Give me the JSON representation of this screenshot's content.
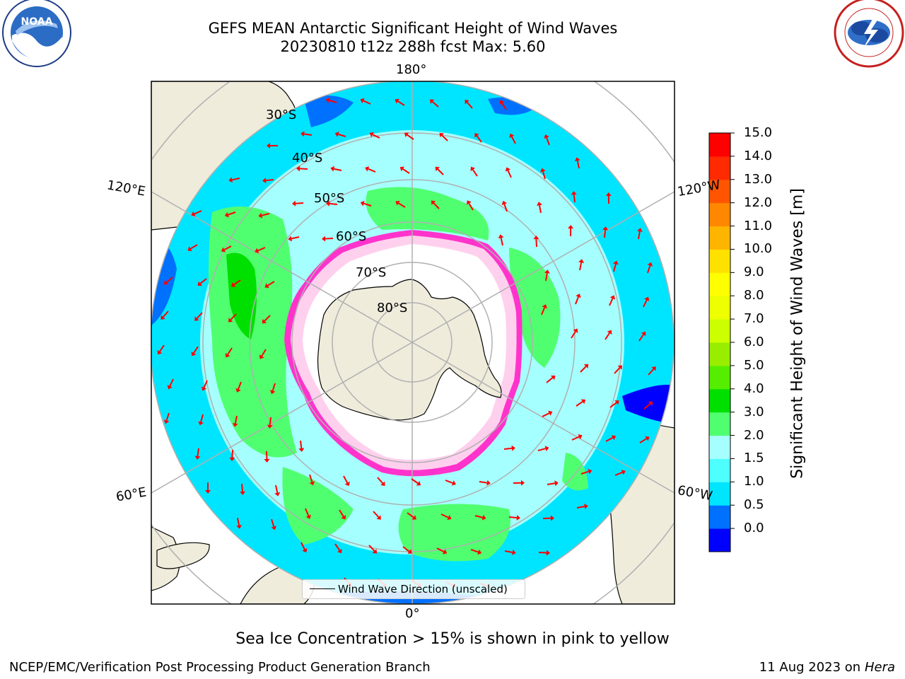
{
  "header": {
    "title_line1": "GEFS MEAN Antarctic Significant Height of Wind Waves",
    "title_line2": "20230810 t12z 288h fcst   Max: 5.60"
  },
  "logos": {
    "noaa": {
      "label": "NOAA",
      "ring_text": "NATIONAL OCEANIC AND ATMOSPHERIC ADMINISTRATION · U.S. DEPARTMENT OF COMMERCE"
    },
    "nws": {
      "ring_text": "NATIONAL WEATHER SERVICE"
    }
  },
  "map": {
    "projection": "south polar stereographic",
    "longitude_labels": {
      "top": "180°",
      "bottom": "0°",
      "upper_left": "120°E",
      "upper_right": "120°W",
      "lower_left": "60°E",
      "lower_right": "60°W"
    },
    "latitude_labels": [
      "30°S",
      "40°S",
      "50°S",
      "60°S",
      "70°S",
      "80°S"
    ],
    "legend_label": "Wind Wave Direction (unscaled)",
    "colors": {
      "land": "#efecdc",
      "ice_edge": "#ff33cc",
      "ice_core": "#ffd9f2",
      "grid": "#b0b0b0",
      "arrow": "#ff0000",
      "coast": "#000000"
    }
  },
  "colorbar": {
    "label": "Significant Height of Wind Waves [m]",
    "ticks": [
      "15.0",
      "14.0",
      "13.0",
      "12.0",
      "11.0",
      "10.0",
      "9.0",
      "8.0",
      "7.0",
      "6.0",
      "5.0",
      "4.0",
      "3.0",
      "2.0",
      "1.5",
      "1.0",
      "0.5",
      "0.0"
    ],
    "colors_bottom_to_top": [
      "#0000ff",
      "#0070ff",
      "#00e5ff",
      "#4dffff",
      "#a6ffff",
      "#50ff70",
      "#00e000",
      "#55ee00",
      "#99ee00",
      "#ccff00",
      "#eeff00",
      "#ffff00",
      "#ffe100",
      "#ffb400",
      "#ff8800",
      "#ff5500",
      "#ff2a00",
      "#ff0000"
    ]
  },
  "subtitle": "Sea Ice Concentration > 15% is shown in pink to yellow",
  "footer": {
    "left": "NCEP/EMC/Verification Post Processing Product Generation Branch",
    "right_date": "11 Aug 2023 on",
    "right_host": "Hera"
  }
}
